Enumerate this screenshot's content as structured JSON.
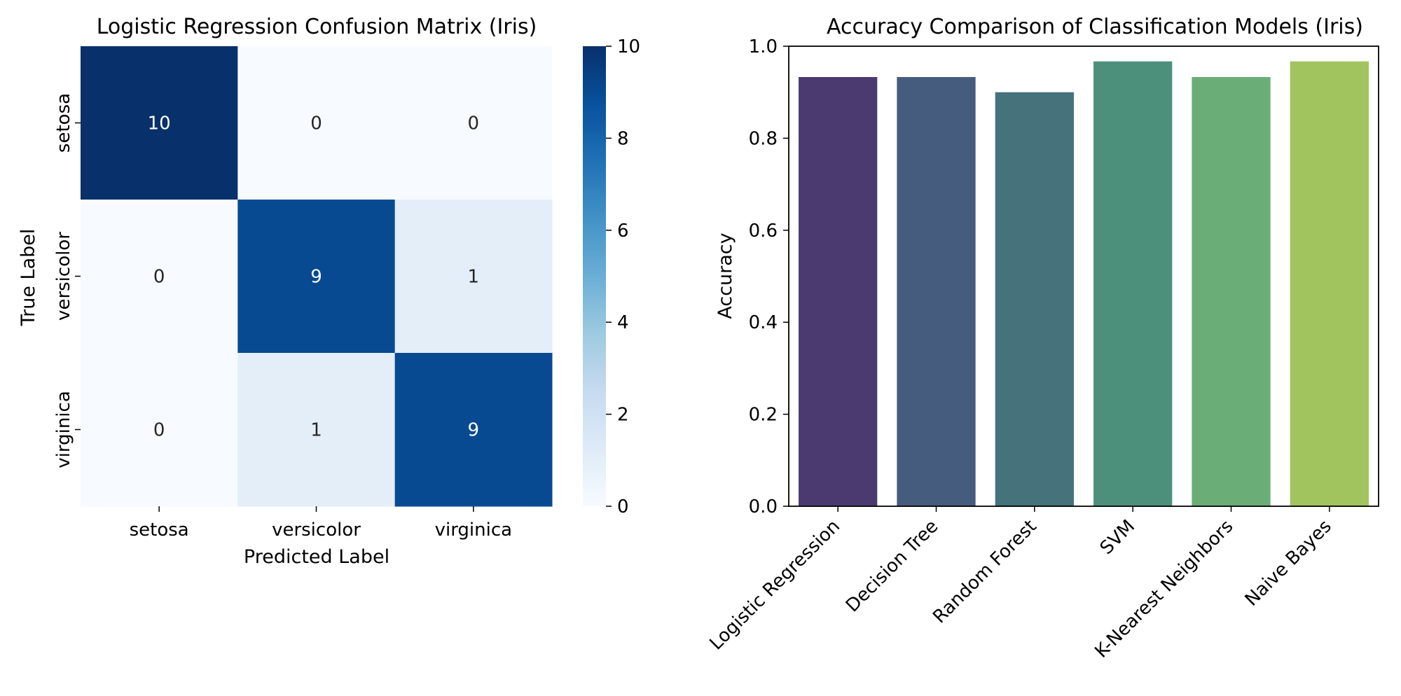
{
  "chart_data": [
    {
      "type": "heatmap",
      "title": "Logistic Regression Confusion Matrix (Iris)",
      "xlabel": "Predicted Label",
      "ylabel": "True Label",
      "x_categories": [
        "setosa",
        "versicolor",
        "virginica"
      ],
      "y_categories": [
        "setosa",
        "versicolor",
        "virginica"
      ],
      "values": [
        [
          10,
          0,
          0
        ],
        [
          0,
          9,
          1
        ],
        [
          0,
          1,
          9
        ]
      ],
      "colormap": "Blues",
      "colorbar": {
        "range": [
          0,
          10
        ],
        "ticks": [
          "0",
          "2",
          "4",
          "6",
          "8",
          "10"
        ]
      },
      "annotation_colors": {
        "light": "#ffffff",
        "dark": "#262626"
      }
    },
    {
      "type": "bar",
      "title": "Accuracy Comparison of Classification Models (Iris)",
      "xlabel": "",
      "ylabel": "Accuracy",
      "categories": [
        "Logistic Regression",
        "Decision Tree",
        "Random Forest",
        "SVM",
        "K-Nearest Neighbors",
        "Naive Bayes"
      ],
      "values": [
        0.933,
        0.933,
        0.9,
        0.967,
        0.933,
        0.967
      ],
      "colors": [
        "#4a3a6f",
        "#465c7e",
        "#45727b",
        "#4c907c",
        "#6aad76",
        "#a2c45e"
      ],
      "ylim": [
        0,
        1.0
      ],
      "yticks": [
        "0.0",
        "0.2",
        "0.4",
        "0.6",
        "0.8",
        "1.0"
      ],
      "grid": false
    }
  ]
}
